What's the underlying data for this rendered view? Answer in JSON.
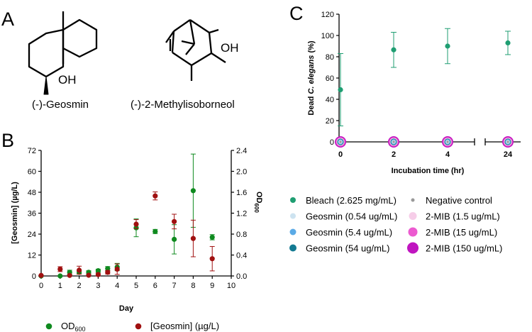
{
  "panel_labels": {
    "a": "A",
    "b": "B",
    "c": "C"
  },
  "molecules": {
    "geosmin": {
      "name": "(-)-Geosmin",
      "group": "OH"
    },
    "mib": {
      "name": "(-)-2-Methylisoborneol",
      "group": "OH"
    }
  },
  "chart_data": [
    {
      "id": "B",
      "type": "scatter",
      "xlabel": "Day",
      "ylabel_left": "[Geosmin] (µg/L)",
      "ylabel_right": "OD",
      "ylabel_right_sub": "600",
      "xlim": [
        0,
        10
      ],
      "ylim_left": [
        0,
        72
      ],
      "ylim_right": [
        0,
        2.4
      ],
      "x_ticks": [
        0,
        1,
        2,
        3,
        4,
        5,
        6,
        7,
        8,
        9,
        10
      ],
      "y_ticks_left": [
        0,
        12,
        24,
        36,
        48,
        60,
        72
      ],
      "y_ticks_right": [
        "0.0",
        "0.4",
        "0.8",
        "1.2",
        "1.6",
        "2.0",
        "2.4"
      ],
      "legend": {
        "od_main": "OD",
        "od_sub": "600",
        "geo_label": "[Geosmin] (µg/L)"
      },
      "series": [
        {
          "name": "OD600",
          "color": "#0f8a1f",
          "axis": "right",
          "points": [
            {
              "x": 0,
              "y": 0.0,
              "err": 0.0
            },
            {
              "x": 1,
              "y": 0.0,
              "err": 0.0
            },
            {
              "x": 1.5,
              "y": 0.07,
              "err": 0.04
            },
            {
              "x": 2,
              "y": 0.07,
              "err": 0.03
            },
            {
              "x": 2.5,
              "y": 0.07,
              "err": 0.03
            },
            {
              "x": 3,
              "y": 0.1,
              "err": 0.03
            },
            {
              "x": 3.5,
              "y": 0.14,
              "err": 0.04
            },
            {
              "x": 4,
              "y": 0.17,
              "err": 0.07
            },
            {
              "x": 5,
              "y": 0.92,
              "err": 0.17
            },
            {
              "x": 6,
              "y": 0.85,
              "err": 0.04
            },
            {
              "x": 7,
              "y": 0.7,
              "err": 0.28
            },
            {
              "x": 8,
              "y": 1.63,
              "err": 0.7
            },
            {
              "x": 9,
              "y": 0.74,
              "err": 0.05
            }
          ]
        },
        {
          "name": "[Geosmin] (µg/L)",
          "color": "#a01010",
          "axis": "left",
          "points": [
            {
              "x": 0,
              "y": 0.3,
              "err": 0.4
            },
            {
              "x": 1,
              "y": 3.9,
              "err": 1.4
            },
            {
              "x": 1.5,
              "y": 0.3,
              "err": 0.4
            },
            {
              "x": 2,
              "y": 3.3,
              "err": 2.3
            },
            {
              "x": 2.5,
              "y": 0.4,
              "err": 0.5
            },
            {
              "x": 3,
              "y": 0.8,
              "err": 0.8
            },
            {
              "x": 3.5,
              "y": 2.1,
              "err": 1.0
            },
            {
              "x": 4,
              "y": 3.9,
              "err": 3.0
            },
            {
              "x": 5,
              "y": 29.7,
              "err": 2.6
            },
            {
              "x": 6,
              "y": 45.9,
              "err": 2.3
            },
            {
              "x": 7,
              "y": 31.2,
              "err": 4.2
            },
            {
              "x": 8,
              "y": 21.5,
              "err": 10.5
            },
            {
              "x": 9,
              "y": 9.9,
              "err": 7.0
            }
          ]
        }
      ]
    },
    {
      "id": "C",
      "type": "scatter",
      "xlabel": "Incubation time (hr)",
      "ylabel_main": "Dead ",
      "ylabel_italic": "C. elegans",
      "ylabel_unit": " (%)",
      "ylim": [
        0,
        120
      ],
      "y_ticks": [
        0,
        20,
        40,
        60,
        80,
        100,
        120
      ],
      "x_ticks": [
        "0",
        "2",
        "4",
        "24"
      ],
      "bleach": {
        "color": "#1f9e72",
        "points": [
          {
            "x": "0",
            "y": 49,
            "err": 34
          },
          {
            "x": "2",
            "y": 86.5,
            "err": 16.5
          },
          {
            "x": "4",
            "y": 90,
            "err": 16.5
          },
          {
            "x": "24",
            "y": 93,
            "err": 11
          }
        ]
      },
      "zero_series_x": [
        "0",
        "2",
        "4",
        "24"
      ],
      "legend": [
        {
          "label": "Bleach (2.625 mg/mL)",
          "color": "#1f9e72",
          "size": 4
        },
        {
          "label": "Negative control",
          "color": "#999999",
          "size": 2.5
        },
        {
          "label": "Geosmin (0.54 ug/mL)",
          "color": "#cde3f0",
          "size": 4
        },
        {
          "label": "2-MIB (1.5 ug/mL)",
          "color": "#f6cde8",
          "size": 5.5
        },
        {
          "label": "Geosmin (5.4 ug/mL)",
          "color": "#5aaae6",
          "size": 4.5
        },
        {
          "label": "2-MIB (15 ug/mL)",
          "color": "#ec5ad0",
          "size": 6.5
        },
        {
          "label": "Geosmin (54 ug/mL)",
          "color": "#137a92",
          "size": 5
        },
        {
          "label": "2-MIB (150 ug/mL)",
          "color": "#c015c0",
          "size": 8
        }
      ]
    }
  ]
}
